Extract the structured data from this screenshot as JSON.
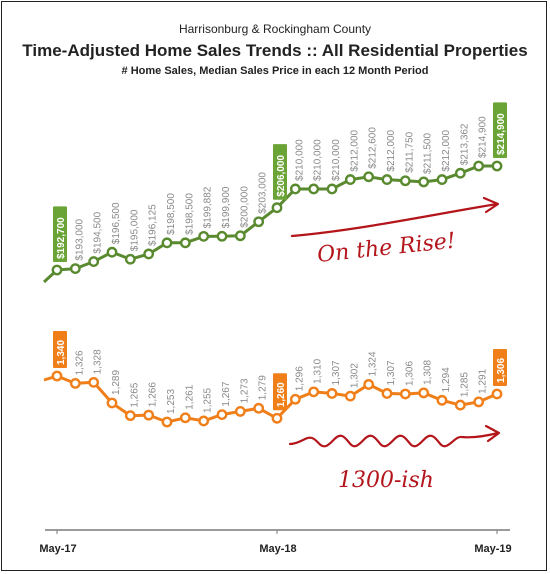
{
  "header": {
    "area": "Harrisonburg & Rockingham County",
    "title": "Time-Adjusted Home Sales Trends  ::  All Residential Properties",
    "subtitle": "# Home Sales, Median Sales Price in each 12 Month Period"
  },
  "annotations": {
    "price": "On the Rise!",
    "sales": "1300-ish"
  },
  "colors": {
    "price_series": "#5a8a2f",
    "price_callout": "#6aa336",
    "sales_series": "#f07f1a",
    "sales_callout": "#f07f1a",
    "annotation": "#b3151b",
    "axis": "#7a7a7a"
  },
  "chart_data": {
    "type": "line",
    "x_tick_labels": [
      "May-17",
      "May-18",
      "May-19"
    ],
    "series": [
      {
        "values": [
          192700,
          193000,
          194500,
          196500,
          195000,
          196125,
          198500,
          198500,
          199882,
          199900,
          200000,
          203000,
          206000,
          210000,
          210000,
          210000,
          212000,
          212600,
          212000,
          211750,
          211500,
          212000,
          213362,
          214900,
          214900
        ],
        "labels": [
          "$192,700",
          "$193,000",
          "$194,500",
          "$196,500",
          "$195,000",
          "$196,125",
          "$198,500",
          "$198,500",
          "$199,882",
          "$199,900",
          "$200,000",
          "$203,000",
          "$206,000",
          "$210,000",
          "$210,000",
          "$210,000",
          "$212,000",
          "$212,600",
          "$212,000",
          "$211,750",
          "$211,500",
          "$212,000",
          "$213,362",
          "$214,900",
          "$214,900"
        ],
        "highlighted": [
          0,
          12,
          24
        ]
      },
      {
        "values": [
          1340,
          1326,
          1328,
          1289,
          1265,
          1266,
          1253,
          1261,
          1255,
          1267,
          1273,
          1279,
          1260,
          1296,
          1310,
          1307,
          1302,
          1324,
          1307,
          1306,
          1308,
          1294,
          1285,
          1291,
          1306
        ],
        "labels": [
          "1,340",
          "1,326",
          "1,328",
          "1,289",
          "1,265",
          "1,266",
          "1,253",
          "1,261",
          "1,255",
          "1,267",
          "1,273",
          "1,279",
          "1,260",
          "1,296",
          "1,310",
          "1,307",
          "1,302",
          "1,324",
          "1,307",
          "1,306",
          "1,308",
          "1,294",
          "1,285",
          "1,291",
          "1,306"
        ],
        "highlighted": [
          0,
          12,
          24
        ]
      }
    ]
  }
}
